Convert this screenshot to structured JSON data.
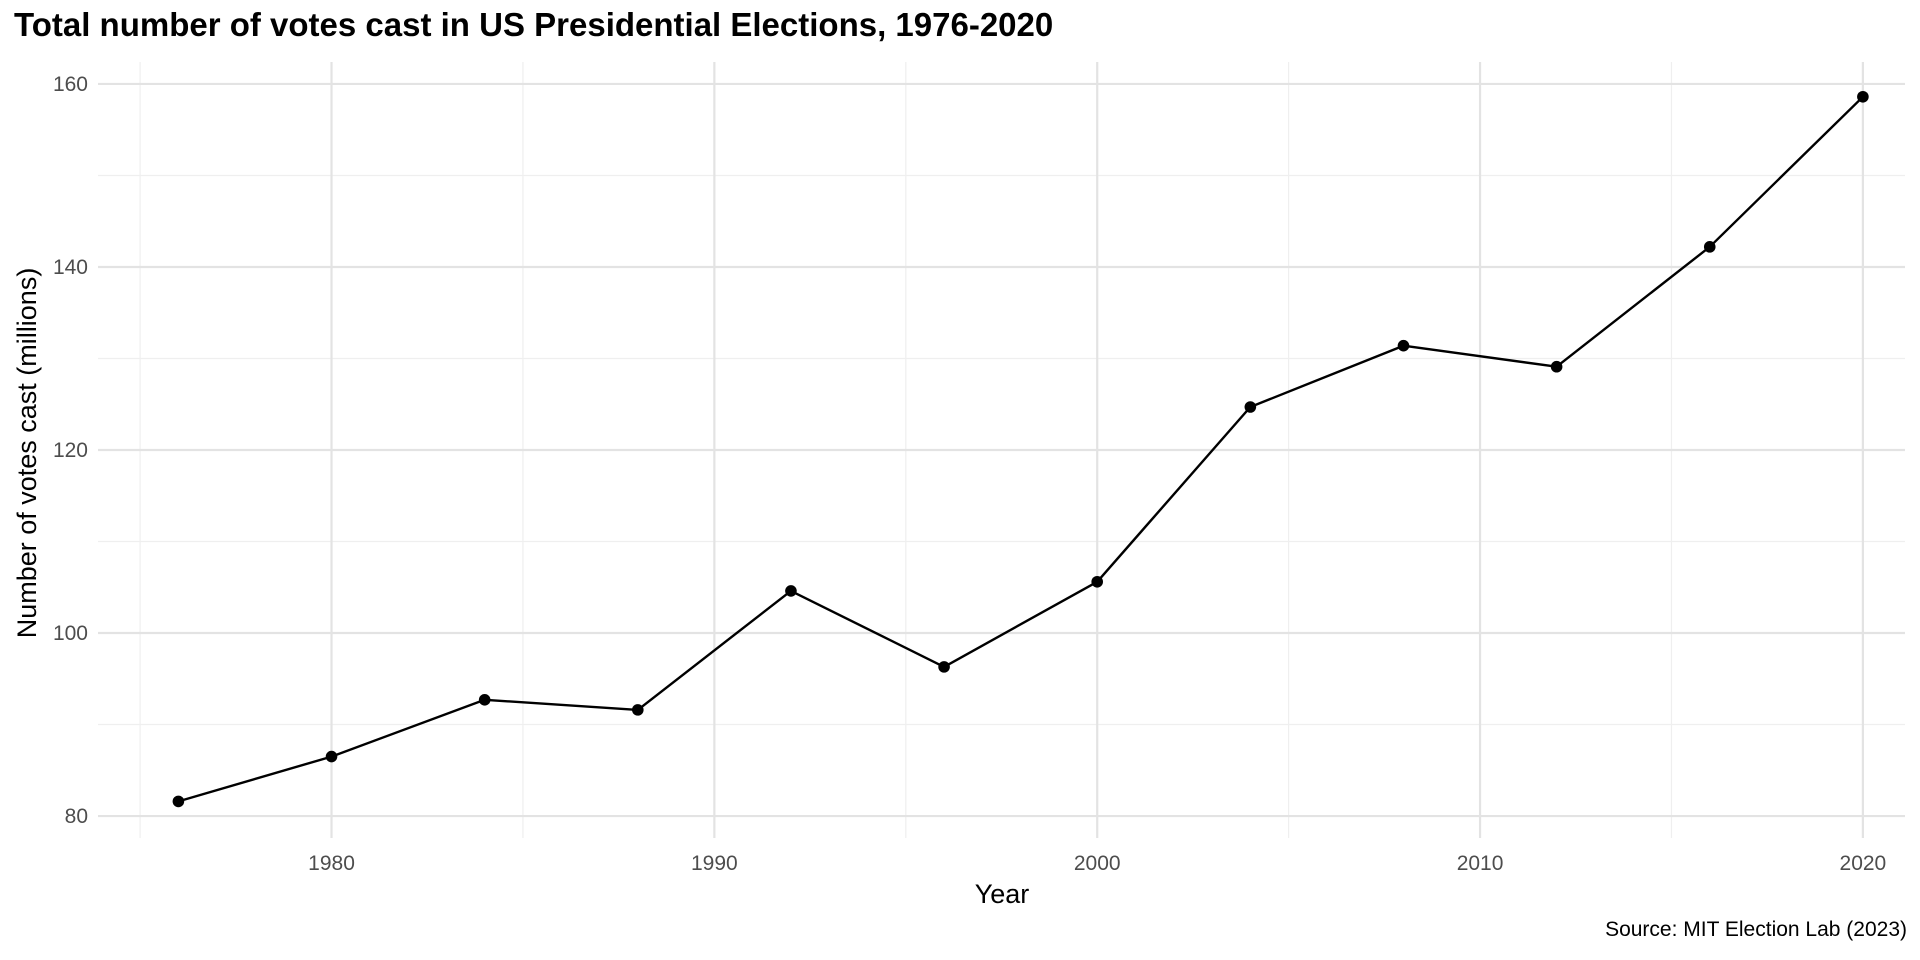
{
  "chart_data": {
    "type": "line",
    "title": "Total number of votes cast in US Presidential Elections, 1976-2020",
    "xlabel": "Year",
    "ylabel": "Number of votes cast (millions)",
    "caption": "Source: MIT Election Lab (2023)",
    "x": [
      1976,
      1980,
      1984,
      1988,
      1992,
      1996,
      2000,
      2004,
      2008,
      2012,
      2016,
      2020
    ],
    "series": [
      {
        "values": [
          81.6,
          86.5,
          92.7,
          91.6,
          104.6,
          96.3,
          105.6,
          124.7,
          131.4,
          129.1,
          142.2,
          158.6
        ]
      }
    ],
    "xlim": [
      1973.9,
      2021.1
    ],
    "ylim": [
      77.6,
      162.4
    ],
    "xticks": [
      1980,
      1990,
      2000,
      2010,
      2020
    ],
    "yticks": [
      80,
      100,
      120,
      140,
      160
    ],
    "grid": true,
    "legend": "none",
    "colors": {
      "line": "#000000",
      "grid_major": "#e3e3e3",
      "grid_minor": "#efefef",
      "tick_text": "#4d4d4d"
    }
  }
}
